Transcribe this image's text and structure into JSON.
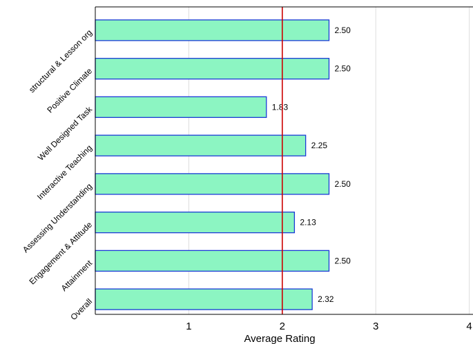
{
  "chart_data": {
    "type": "bar",
    "orientation": "horizontal",
    "categories": [
      "structural & Lesson org",
      "Positive Climate",
      "Well Designed Task",
      "Interactive Teaching",
      "Assessing Understanding",
      "Engagement & Attitude",
      "Attainment",
      "Overall"
    ],
    "values": [
      2.5,
      2.5,
      1.83,
      2.25,
      2.5,
      2.13,
      2.5,
      2.32
    ],
    "value_labels": [
      "2.50",
      "2.50",
      "1.83",
      "2.25",
      "2.50",
      "2.13",
      "2.50",
      "2.32"
    ],
    "title": "",
    "xlabel": "Average Rating",
    "ylabel": "",
    "xlim": [
      0,
      4.04
    ],
    "xticks": [
      1,
      2,
      3,
      4
    ],
    "xtick_labels": [
      "1",
      "2",
      "3",
      "4"
    ],
    "reference_line": {
      "x": 2,
      "color": "#cc0000"
    },
    "grid": "vertical",
    "legend": "none",
    "colors": {
      "bar_fill": "#8cf5c2",
      "bar_stroke": "#1a3ad6",
      "grid": "#dddddd",
      "axis": "#000000"
    }
  }
}
